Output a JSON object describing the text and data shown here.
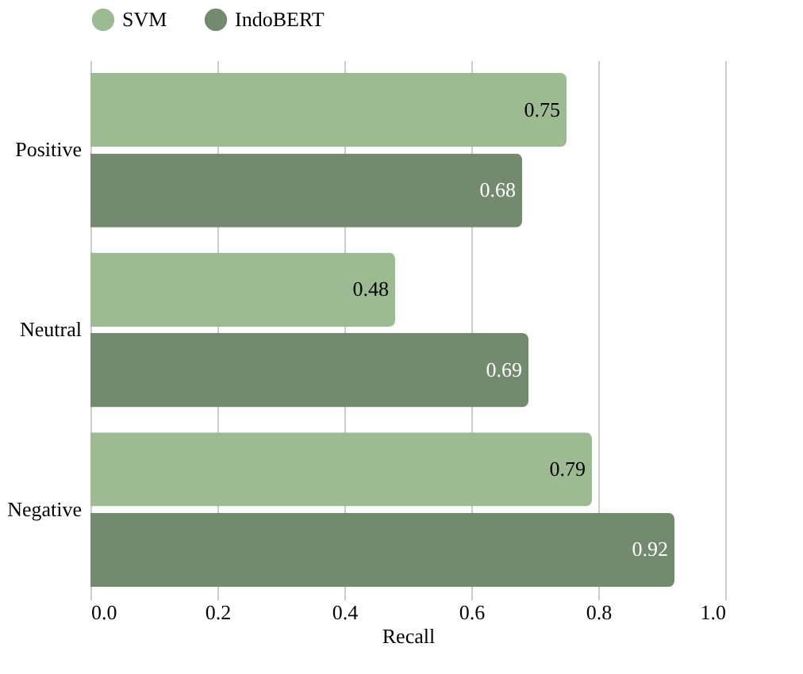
{
  "chart_data": {
    "type": "bar",
    "orientation": "horizontal",
    "xlabel": "Recall",
    "categories": [
      "Positive",
      "Neutral",
      "Negative"
    ],
    "series": [
      {
        "name": "SVM",
        "color": "#9dbb93",
        "values": [
          0.75,
          0.48,
          0.79
        ]
      },
      {
        "name": "IndoBERT",
        "color": "#738a6e",
        "values": [
          0.68,
          0.69,
          0.92
        ]
      }
    ],
    "xlim": [
      0,
      1
    ],
    "xticks": [
      {
        "value": 0,
        "label": "0.0"
      },
      {
        "value": 0.2,
        "label": "0.2"
      },
      {
        "value": 0.4,
        "label": "0.4"
      },
      {
        "value": 0.6,
        "label": "0.6"
      },
      {
        "value": 0.8,
        "label": "0.8"
      },
      {
        "value": 1,
        "label": "1.0"
      }
    ],
    "grid": "x",
    "legend": "top",
    "data_labels": true
  }
}
